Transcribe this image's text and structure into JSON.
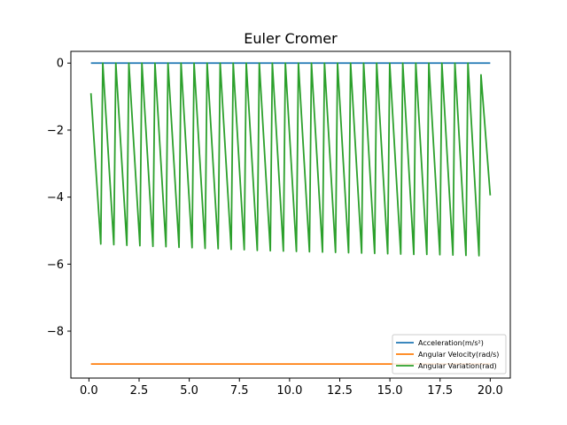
{
  "chart_data": {
    "type": "line",
    "title": "Euler Cromer",
    "xlabel": "",
    "ylabel": "",
    "xlim": [
      -0.9,
      21.0
    ],
    "ylim": [
      -9.4,
      0.35
    ],
    "x_ticks": [
      0.0,
      2.5,
      5.0,
      7.5,
      10.0,
      12.5,
      15.0,
      17.5,
      20.0
    ],
    "x_tick_labels": [
      "0.0",
      "2.5",
      "5.0",
      "7.5",
      "10.0",
      "12.5",
      "15.0",
      "17.5",
      "20.0"
    ],
    "y_ticks": [
      0,
      -2,
      -4,
      -6,
      -8
    ],
    "y_tick_labels": [
      "0",
      "−2",
      "−4",
      "−6",
      "−8"
    ],
    "grid": false,
    "legend_position": "lower-right",
    "series": [
      {
        "name": "Acceleration(m/s²)",
        "color": "#1f77b4",
        "x": [
          0.1,
          20.0
        ],
        "y": [
          0.0,
          0.0
        ]
      },
      {
        "name": "Angular Velocity(rad/s)",
        "color": "#ff7f0e",
        "x": [
          0.1,
          20.0
        ],
        "y": [
          -8.98,
          -8.98
        ]
      },
      {
        "name": "Angular Variation(rad)",
        "color": "#2ca02c",
        "x": [
          0.1,
          0.59,
          0.69,
          1.24,
          1.34,
          1.89,
          1.99,
          2.54,
          2.64,
          3.19,
          3.29,
          3.84,
          3.94,
          4.49,
          4.59,
          5.14,
          5.24,
          5.79,
          5.89,
          6.44,
          6.54,
          7.09,
          7.19,
          7.74,
          7.84,
          8.39,
          8.49,
          9.04,
          9.14,
          9.69,
          9.79,
          10.34,
          10.44,
          10.99,
          11.09,
          11.64,
          11.74,
          12.29,
          12.39,
          12.94,
          13.04,
          13.59,
          13.69,
          14.24,
          14.34,
          14.89,
          14.99,
          15.54,
          15.64,
          16.19,
          16.29,
          16.84,
          16.94,
          17.49,
          17.59,
          18.14,
          18.24,
          18.79,
          18.89,
          19.44,
          19.54,
          20.0
        ],
        "y": [
          -0.9,
          -5.4,
          0.0,
          -5.42,
          0.0,
          -5.44,
          0.0,
          -5.45,
          0.0,
          -5.47,
          0.0,
          -5.48,
          0.0,
          -5.5,
          0.0,
          -5.51,
          0.0,
          -5.53,
          0.0,
          -5.54,
          0.0,
          -5.56,
          0.0,
          -5.57,
          0.0,
          -5.59,
          0.0,
          -5.6,
          0.0,
          -5.61,
          0.0,
          -5.62,
          0.0,
          -5.63,
          0.0,
          -5.64,
          0.0,
          -5.65,
          0.0,
          -5.66,
          0.0,
          -5.67,
          0.0,
          -5.68,
          0.0,
          -5.69,
          0.0,
          -5.7,
          0.0,
          -5.71,
          0.0,
          -5.71,
          0.0,
          -5.72,
          0.0,
          -5.73,
          0.0,
          -5.74,
          0.0,
          -5.75,
          -0.35,
          -3.95
        ]
      }
    ]
  }
}
